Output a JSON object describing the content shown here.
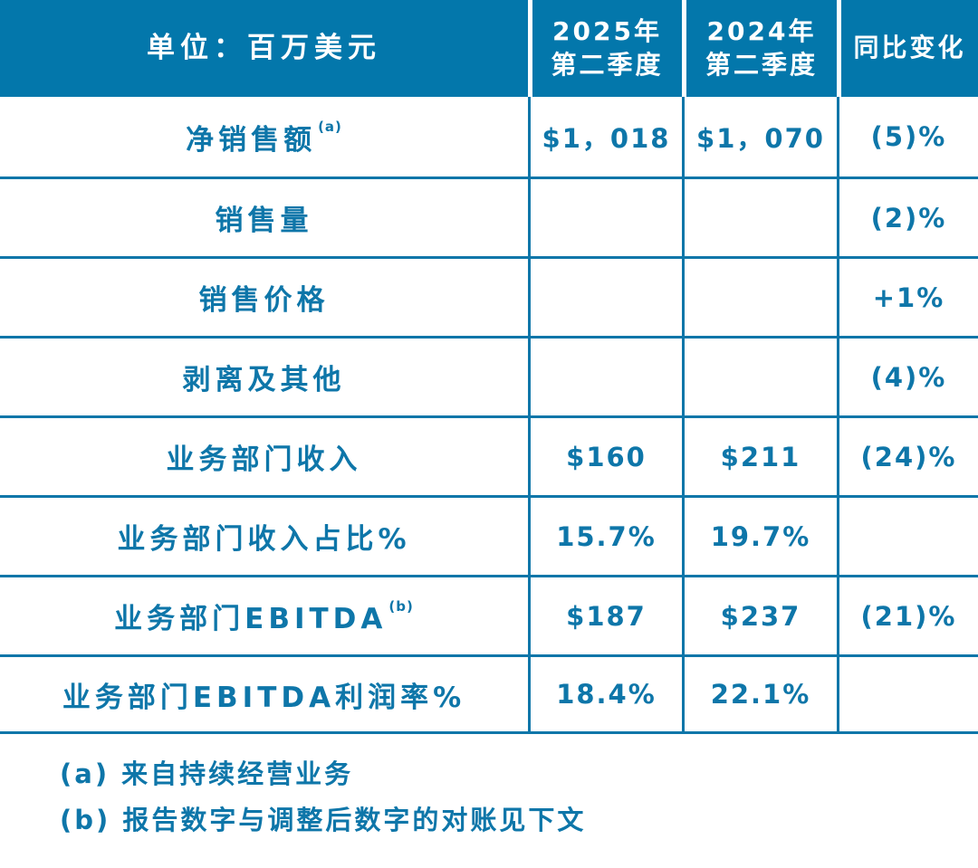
{
  "colors": {
    "header_bg": "#0377AB",
    "text": "#0E76A9",
    "grid_line": "#0E76A9",
    "background": "#FFFFFF",
    "header_text": "#FFFFFF"
  },
  "header": {
    "unit": "单位：百万美元",
    "c2025_l1": "2025年",
    "c2025_l2": "第二季度",
    "c2024_l1": "2024年",
    "c2024_l2": "第二季度",
    "yoy": "同比变化"
  },
  "rows": [
    {
      "label": "净销售额",
      "sup": "(a)",
      "q2_2025": "$1，018",
      "q2_2024": "$1，070",
      "yoy": "(5)%"
    },
    {
      "label": "销售量",
      "sup": "",
      "q2_2025": "",
      "q2_2024": "",
      "yoy": "(2)%"
    },
    {
      "label": "销售价格",
      "sup": "",
      "q2_2025": "",
      "q2_2024": "",
      "yoy": "+1%"
    },
    {
      "label": "剥离及其他",
      "sup": "",
      "q2_2025": "",
      "q2_2024": "",
      "yoy": "(4)%"
    },
    {
      "label": "业务部门收入",
      "sup": "",
      "q2_2025": "$160",
      "q2_2024": "$211",
      "yoy": "(24)%"
    },
    {
      "label": "业务部门收入占比%",
      "sup": "",
      "q2_2025": "15.7%",
      "q2_2024": "19.7%",
      "yoy": ""
    },
    {
      "label": "业务部门EBITDA",
      "sup": "(b)",
      "q2_2025": "$187",
      "q2_2024": "$237",
      "yoy": "(21)%"
    },
    {
      "label": "业务部门EBITDA利润率%",
      "sup": "",
      "q2_2025": "18.4%",
      "q2_2024": "22.1%",
      "yoy": ""
    }
  ],
  "footnotes": {
    "a": "(a) 来自持续经营业务",
    "b": "(b) 报告数字与调整后数字的对账见下文"
  },
  "chart_data": {
    "type": "table",
    "title": "单位：百万美元",
    "columns": [
      "单位：百万美元",
      "2025年第二季度",
      "2024年第二季度",
      "同比变化"
    ],
    "rows": [
      [
        "净销售额 (a)",
        "$1,018",
        "$1,070",
        "(5)%"
      ],
      [
        "销售量",
        "",
        "",
        "(2)%"
      ],
      [
        "销售价格",
        "",
        "",
        "+1%"
      ],
      [
        "剥离及其他",
        "",
        "",
        "(4)%"
      ],
      [
        "业务部门收入",
        "$160",
        "$211",
        "(24)%"
      ],
      [
        "业务部门收入占比%",
        "15.7%",
        "19.7%",
        ""
      ],
      [
        "业务部门EBITDA (b)",
        "$187",
        "$237",
        "(21)%"
      ],
      [
        "业务部门EBITDA利润率%",
        "18.4%",
        "22.1%",
        ""
      ]
    ],
    "footnotes": [
      "(a) 来自持续经营业务",
      "(b) 报告数字与调整后数字的对账见下文"
    ],
    "layout": {
      "header_bg": "#0377AB",
      "grid": "on",
      "units": "百万美元"
    }
  }
}
